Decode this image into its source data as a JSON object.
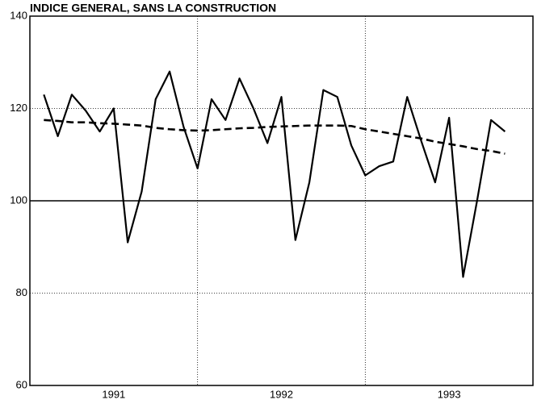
{
  "chart_data": {
    "type": "line",
    "title": "INDICE GENERAL, SANS LA CONSTRUCTION",
    "x": [
      1,
      2,
      3,
      4,
      5,
      6,
      7,
      8,
      9,
      10,
      11,
      12,
      13,
      14,
      15,
      16,
      17,
      18,
      19,
      20,
      21,
      22,
      23,
      24,
      25,
      26,
      27,
      28,
      29,
      30,
      31,
      32,
      33,
      34
    ],
    "series": [
      {
        "name": null,
        "color": "#000000",
        "dash": false,
        "values": [
          123,
          114,
          123,
          119.5,
          115,
          120,
          91,
          102,
          122,
          128,
          116,
          107,
          122,
          117.5,
          126.5,
          120,
          112.5,
          122.5,
          91.5,
          104,
          124,
          122.5,
          112,
          105.5,
          107.5,
          108.5,
          122.5,
          113,
          104,
          118,
          83.5,
          100,
          117.5,
          115
        ]
      },
      {
        "name": null,
        "color": "#000000",
        "dash": true,
        "values": [
          117.5,
          117.3,
          117,
          117,
          116.8,
          116.7,
          116.5,
          116.3,
          115.8,
          115.5,
          115.3,
          115.2,
          115.3,
          115.5,
          115.7,
          115.8,
          116,
          116.1,
          116.2,
          116.3,
          116.3,
          116.3,
          116.2,
          115.5,
          115,
          114.5,
          114,
          113.5,
          112.8,
          112.3,
          111.8,
          111.2,
          110.8,
          110.2
        ]
      }
    ],
    "xlim": [
      0,
      36
    ],
    "xticks": [
      {
        "value": 6,
        "label": "1991"
      },
      {
        "value": 18,
        "label": "1992"
      },
      {
        "value": 30,
        "label": "1993"
      }
    ],
    "xgrid": [
      12,
      24
    ],
    "ylim": [
      60,
      140
    ],
    "yticks": [
      60,
      80,
      100,
      120,
      140
    ],
    "reference_line": 100,
    "grid": true
  }
}
